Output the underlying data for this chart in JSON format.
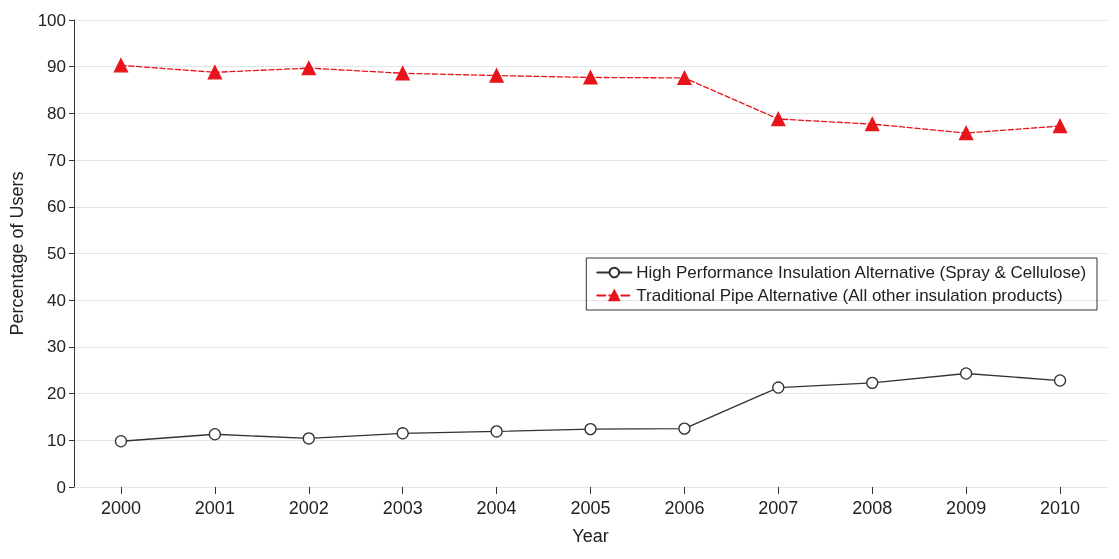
{
  "chart_data": {
    "type": "line",
    "xlabel": "Year",
    "ylabel": "Percentage of Users",
    "categories": [
      "2000",
      "2001",
      "2002",
      "2003",
      "2004",
      "2005",
      "2006",
      "2007",
      "2008",
      "2009",
      "2010"
    ],
    "series": [
      {
        "name": "High Performance Insulation Alternative (Spray & Cellulose)",
        "color": "#333333",
        "marker": "circle",
        "line_style": "solid",
        "values": [
          9.8,
          11.3,
          10.4,
          11.5,
          11.9,
          12.4,
          12.5,
          21.3,
          22.3,
          24.3,
          22.8
        ]
      },
      {
        "name": "Traditional Pipe Alternative (All other insulation products)",
        "color": "#e8141c",
        "marker": "triangle",
        "line_style": "dashed",
        "values": [
          90.3,
          88.8,
          89.7,
          88.6,
          88.1,
          87.7,
          87.6,
          78.8,
          77.7,
          75.8,
          77.3
        ]
      }
    ],
    "ylim": [
      0,
      100
    ],
    "yticks": [
      0,
      10,
      20,
      30,
      40,
      50,
      60,
      70,
      80,
      90,
      100
    ],
    "grid": "y",
    "legend": "right"
  }
}
